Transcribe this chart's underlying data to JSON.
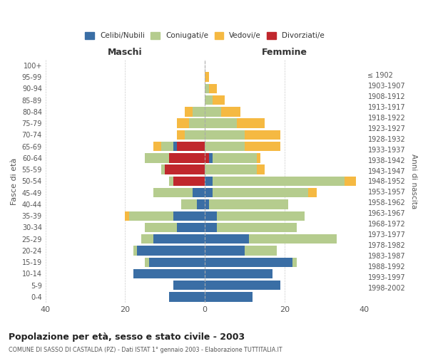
{
  "age_groups": [
    "0-4",
    "5-9",
    "10-14",
    "15-19",
    "20-24",
    "25-29",
    "30-34",
    "35-39",
    "40-44",
    "45-49",
    "50-54",
    "55-59",
    "60-64",
    "65-69",
    "70-74",
    "75-79",
    "80-84",
    "85-89",
    "90-94",
    "95-99",
    "100+"
  ],
  "birth_years": [
    "1998-2002",
    "1993-1997",
    "1988-1992",
    "1983-1987",
    "1978-1982",
    "1973-1977",
    "1968-1972",
    "1963-1967",
    "1958-1962",
    "1953-1957",
    "1948-1952",
    "1943-1947",
    "1938-1942",
    "1933-1937",
    "1928-1932",
    "1923-1927",
    "1918-1922",
    "1913-1917",
    "1908-1912",
    "1903-1907",
    "≤ 1902"
  ],
  "maschi": {
    "celibi": [
      9,
      8,
      18,
      14,
      17,
      13,
      7,
      8,
      2,
      3,
      0,
      0,
      0,
      1,
      0,
      0,
      0,
      0,
      0,
      0,
      0
    ],
    "coniugati": [
      0,
      0,
      0,
      1,
      1,
      3,
      8,
      11,
      4,
      10,
      1,
      1,
      6,
      3,
      5,
      4,
      3,
      0,
      0,
      0,
      0
    ],
    "vedovi": [
      0,
      0,
      0,
      0,
      0,
      0,
      0,
      1,
      0,
      0,
      0,
      0,
      0,
      2,
      2,
      3,
      2,
      0,
      0,
      0,
      0
    ],
    "divorziati": [
      0,
      0,
      0,
      0,
      0,
      0,
      0,
      0,
      0,
      0,
      8,
      10,
      9,
      7,
      0,
      0,
      0,
      0,
      0,
      0,
      0
    ]
  },
  "femmine": {
    "nubili": [
      12,
      19,
      17,
      22,
      10,
      11,
      3,
      3,
      1,
      2,
      2,
      0,
      1,
      0,
      0,
      0,
      0,
      0,
      0,
      0,
      0
    ],
    "coniugate": [
      0,
      0,
      0,
      1,
      8,
      22,
      20,
      22,
      20,
      24,
      33,
      13,
      11,
      10,
      10,
      8,
      4,
      2,
      1,
      0,
      0
    ],
    "vedove": [
      0,
      0,
      0,
      0,
      0,
      0,
      0,
      0,
      0,
      2,
      3,
      2,
      1,
      9,
      9,
      7,
      5,
      3,
      2,
      1,
      0
    ],
    "divorziate": [
      0,
      0,
      0,
      0,
      0,
      0,
      0,
      0,
      0,
      0,
      0,
      0,
      1,
      0,
      0,
      0,
      0,
      0,
      0,
      0,
      0
    ]
  },
  "colors": {
    "celibi_nubili": "#3a6ea5",
    "coniugati": "#b5cc8e",
    "vedovi": "#f5b942",
    "divorziati": "#c0272d"
  },
  "xlim": 40,
  "title": "Popolazione per età, sesso e stato civile - 2003",
  "subtitle": "COMUNE DI SASSO DI CASTALDA (PZ) - Dati ISTAT 1° gennaio 2003 - Elaborazione TUTTITALIA.IT",
  "ylabel_left": "Fasce di età",
  "ylabel_right": "Anni di nascita",
  "xlabel_maschi": "Maschi",
  "xlabel_femmine": "Femmine"
}
